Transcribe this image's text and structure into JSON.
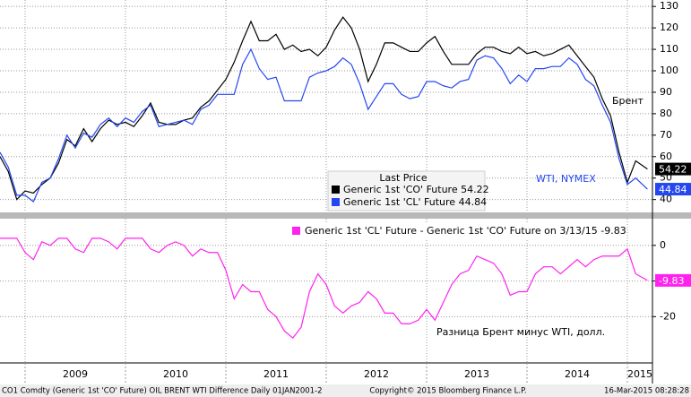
{
  "chart_data": [
    {
      "type": "line",
      "x": [
        2008.75,
        2008.833,
        2008.917,
        2009,
        2009.083,
        2009.167,
        2009.25,
        2009.333,
        2009.417,
        2009.5,
        2009.583,
        2009.667,
        2009.75,
        2009.833,
        2009.917,
        2010,
        2010.083,
        2010.167,
        2010.25,
        2010.333,
        2010.417,
        2010.5,
        2010.583,
        2010.667,
        2010.75,
        2010.833,
        2010.917,
        2011,
        2011.083,
        2011.167,
        2011.25,
        2011.333,
        2011.417,
        2011.5,
        2011.583,
        2011.667,
        2011.75,
        2011.833,
        2011.917,
        2012,
        2012.083,
        2012.167,
        2012.25,
        2012.333,
        2012.417,
        2012.5,
        2012.583,
        2012.667,
        2012.75,
        2012.833,
        2012.917,
        2013,
        2013.083,
        2013.167,
        2013.25,
        2013.333,
        2013.417,
        2013.5,
        2013.583,
        2013.667,
        2013.75,
        2013.833,
        2013.917,
        2014,
        2014.083,
        2014.167,
        2014.25,
        2014.333,
        2014.417,
        2014.5,
        2014.583,
        2014.667,
        2014.75,
        2014.833,
        2014.917,
        2015,
        2015.083,
        2015.2
      ],
      "series": [
        {
          "name": "Generic 1st 'CO' Future",
          "color": "#000000",
          "values": [
            60,
            53,
            40,
            44,
            43,
            47,
            50,
            57,
            68,
            65,
            73,
            67,
            73,
            77,
            75,
            76,
            74,
            79,
            85,
            76,
            75,
            75,
            77,
            78,
            83,
            86,
            91,
            96,
            104,
            114,
            123,
            114,
            114,
            117,
            110,
            112,
            109,
            110,
            107,
            111,
            119,
            125,
            120,
            110,
            95,
            103,
            113,
            113,
            111,
            109,
            109,
            113,
            116,
            109,
            103,
            103,
            103,
            108,
            111,
            111,
            109,
            108,
            111,
            108,
            109,
            107,
            108,
            110,
            112,
            107,
            102,
            97,
            87,
            79,
            62,
            48,
            58,
            54.22
          ]
        },
        {
          "name": "Generic 1st 'CL' Future",
          "color": "#2447f0",
          "values": [
            62,
            55,
            42,
            42,
            39,
            48,
            50,
            59,
            70,
            64,
            71,
            69,
            75,
            78,
            74,
            78,
            76,
            81,
            84,
            74,
            75,
            76,
            77,
            75,
            82,
            84,
            89,
            89,
            89,
            103,
            110,
            101,
            96,
            97,
            86,
            86,
            86,
            97,
            99,
            100,
            102,
            106,
            103,
            94,
            82,
            88,
            94,
            94,
            89,
            87,
            88,
            95,
            95,
            93,
            92,
            95,
            96,
            105,
            107,
            106,
            101,
            94,
            98,
            95,
            101,
            101,
            102,
            102,
            106,
            103,
            96,
            93,
            84,
            76,
            59,
            47,
            50,
            44.84
          ]
        }
      ],
      "legend_title": "Last Price",
      "annotations": [
        "Брент",
        "WTI, NYMEX"
      ],
      "xlim": [
        2008.75,
        2015.25
      ],
      "ylim": [
        34,
        133
      ],
      "yticks": [
        40,
        50,
        60,
        70,
        80,
        90,
        100,
        110,
        120,
        130
      ],
      "grid": true
    },
    {
      "type": "line",
      "x": [
        2008.75,
        2008.833,
        2008.917,
        2009,
        2009.083,
        2009.167,
        2009.25,
        2009.333,
        2009.417,
        2009.5,
        2009.583,
        2009.667,
        2009.75,
        2009.833,
        2009.917,
        2010,
        2010.083,
        2010.167,
        2010.25,
        2010.333,
        2010.417,
        2010.5,
        2010.583,
        2010.667,
        2010.75,
        2010.833,
        2010.917,
        2011,
        2011.083,
        2011.167,
        2011.25,
        2011.333,
        2011.417,
        2011.5,
        2011.583,
        2011.667,
        2011.75,
        2011.833,
        2011.917,
        2012,
        2012.083,
        2012.167,
        2012.25,
        2012.333,
        2012.417,
        2012.5,
        2012.583,
        2012.667,
        2012.75,
        2012.833,
        2012.917,
        2013,
        2013.083,
        2013.167,
        2013.25,
        2013.333,
        2013.417,
        2013.5,
        2013.583,
        2013.667,
        2013.75,
        2013.833,
        2013.917,
        2014,
        2014.083,
        2014.167,
        2014.25,
        2014.333,
        2014.417,
        2014.5,
        2014.583,
        2014.667,
        2014.75,
        2014.833,
        2014.917,
        2015,
        2015.083,
        2015.2
      ],
      "series": [
        {
          "name": "Generic 1st 'CL' Future - Generic 1st 'CO' Future on 3/13/15",
          "color": "#ff22ee",
          "values": [
            2,
            2,
            2,
            -2,
            -4,
            1,
            0,
            2,
            2,
            -1,
            -2,
            2,
            2,
            1,
            -1,
            2,
            2,
            2,
            -1,
            -2,
            0,
            1,
            0,
            -3,
            -1,
            -2,
            -2,
            -7,
            -15,
            -11,
            -13,
            -13,
            -18,
            -20,
            -24,
            -26,
            -23,
            -13,
            -8,
            -11,
            -17,
            -19,
            -17,
            -16,
            -13,
            -15,
            -19,
            -19,
            -22,
            -22,
            -21,
            -18,
            -21,
            -16,
            -11,
            -8,
            -7,
            -3,
            -4,
            -5,
            -8,
            -14,
            -13,
            -13,
            -8,
            -6,
            -6,
            -8,
            -6,
            -4,
            -6,
            -4,
            -3,
            -3,
            -3,
            -1,
            -8,
            -9.83
          ]
        }
      ],
      "annotations": [
        "Разница Брент минус WTI, долл."
      ],
      "xlim": [
        2008.75,
        2015.25
      ],
      "xticks": [
        2009,
        2010,
        2011,
        2012,
        2013,
        2014,
        2015
      ],
      "ylim": [
        -33,
        7.5
      ],
      "yticks": [
        0,
        -10,
        -20
      ],
      "grid": true
    }
  ],
  "footer": {
    "left": "CO1 Comdty (Generic 1st 'CO' Future) OIL BRENT WTI Difference  Daily 01JAN2001-2",
    "center": "Copyright© 2015 Bloomberg Finance L.P.",
    "right": "16-Mar-2015 08:28:28"
  }
}
